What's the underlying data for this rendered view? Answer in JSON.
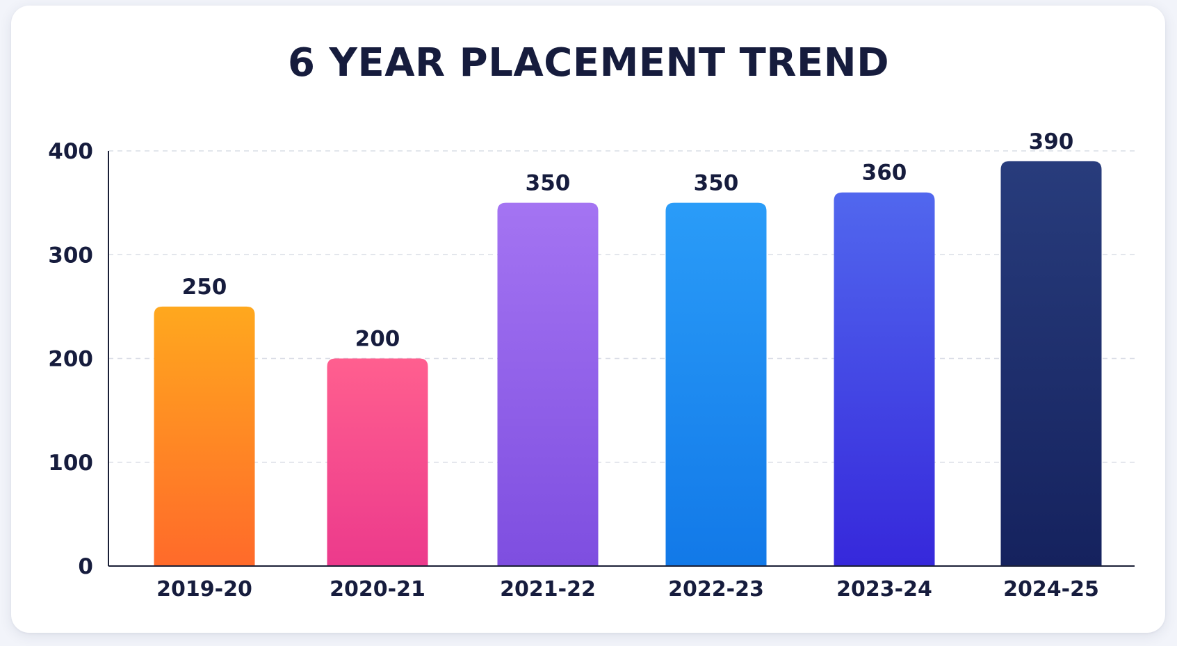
{
  "chart_data": {
    "type": "bar",
    "title": "6 YEAR PLACEMENT TREND",
    "xlabel": "",
    "ylabel": "",
    "categories": [
      "2019-20",
      "2020-21",
      "2021-22",
      "2022-23",
      "2023-24",
      "2024-25"
    ],
    "values": [
      250,
      200,
      350,
      350,
      360,
      390
    ],
    "data_labels": [
      "250",
      "200",
      "350",
      "350",
      "360",
      "390"
    ],
    "ylim": [
      0,
      400
    ],
    "yticks": [
      0,
      100,
      200,
      300,
      400
    ],
    "ytick_labels": [
      "0",
      "100",
      "200",
      "300",
      "400"
    ],
    "grid": true,
    "legend": "none",
    "colors": [
      [
        "#ffa81e",
        "#ff6a2a"
      ],
      [
        "#ff5f8f",
        "#ec3a8c"
      ],
      [
        "#a474f2",
        "#7e4ee0"
      ],
      [
        "#2a9cf8",
        "#1279e8"
      ],
      [
        "#5167ee",
        "#3628db"
      ],
      [
        "#283c7c",
        "#15225e"
      ]
    ],
    "text_color": "#161c3d",
    "grid_color": "#d9dde6",
    "axis_color": "#1a1f36"
  }
}
